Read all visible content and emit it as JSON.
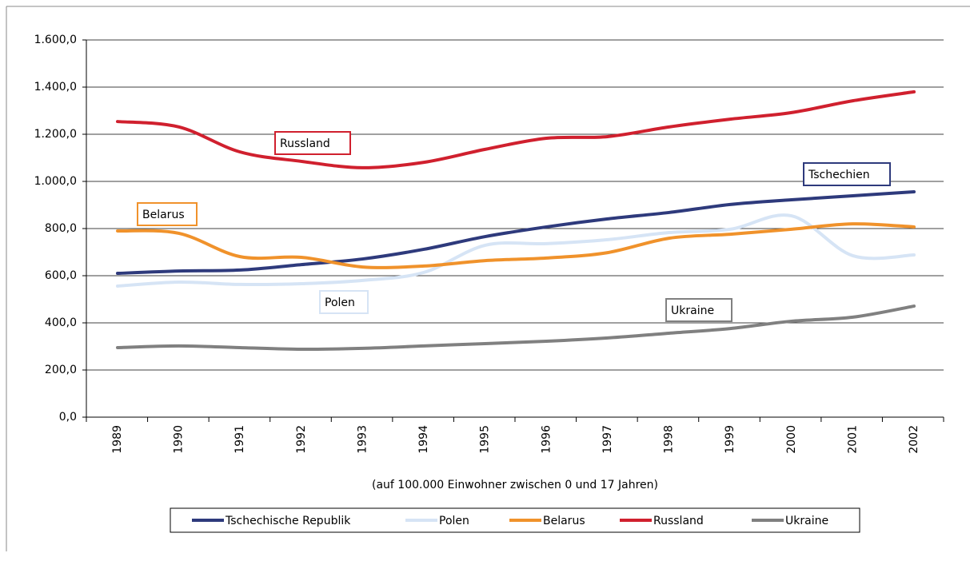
{
  "chart_data": {
    "type": "line",
    "categories": [
      "1989",
      "1990",
      "1991",
      "1992",
      "1993",
      "1994",
      "1995",
      "1996",
      "1997",
      "1998",
      "1999",
      "2000",
      "2001",
      "2002"
    ],
    "xlabel": "(auf 100.000 Einwohner zwischen 0 und 17 Jahren)",
    "ylim": [
      0,
      1600
    ],
    "yticks": [
      {
        "value": 0,
        "label": "0,0"
      },
      {
        "value": 200,
        "label": "200,0"
      },
      {
        "value": 400,
        "label": "400,0"
      },
      {
        "value": 600,
        "label": "600,0"
      },
      {
        "value": 800,
        "label": "800,0"
      },
      {
        "value": 1000,
        "label": "1.000,0"
      },
      {
        "value": 1200,
        "label": "1.200,0"
      },
      {
        "value": 1400,
        "label": "1.400,0"
      },
      {
        "value": 1600,
        "label": "1.600,0"
      }
    ],
    "grid": true,
    "legend": "bottom",
    "series": [
      {
        "name": "Tschechische Republik",
        "color": "#2e3a7c",
        "values": [
          610,
          620,
          624,
          647,
          671,
          712,
          766,
          807,
          841,
          868,
          902,
          922,
          939,
          956
        ]
      },
      {
        "name": "Polen",
        "color": "#d6e4f5",
        "values": [
          556,
          573,
          563,
          566,
          580,
          614,
          729,
          736,
          753,
          783,
          797,
          854,
          685,
          688
        ]
      },
      {
        "name": "Belarus",
        "color": "#f0922b",
        "values": [
          790,
          780,
          681,
          678,
          637,
          641,
          664,
          675,
          698,
          759,
          776,
          797,
          820,
          807
        ]
      },
      {
        "name": "Russland",
        "color": "#d0202e",
        "values": [
          1254,
          1231,
          1125,
          1085,
          1058,
          1081,
          1136,
          1183,
          1190,
          1231,
          1264,
          1292,
          1342,
          1380
        ]
      },
      {
        "name": "Ukraine",
        "color": "#808080",
        "values": [
          295,
          302,
          295,
          288,
          292,
          302,
          312,
          322,
          336,
          356,
          376,
          407,
          424,
          471
        ]
      }
    ],
    "annotations": [
      {
        "text": "Tschechien",
        "color": "#2e3a7c"
      },
      {
        "text": "Polen",
        "color": "#d6e4f5"
      },
      {
        "text": "Belarus",
        "color": "#f0922b"
      },
      {
        "text": "Russland",
        "color": "#d0202e"
      },
      {
        "text": "Ukraine",
        "color": "#808080"
      }
    ]
  }
}
